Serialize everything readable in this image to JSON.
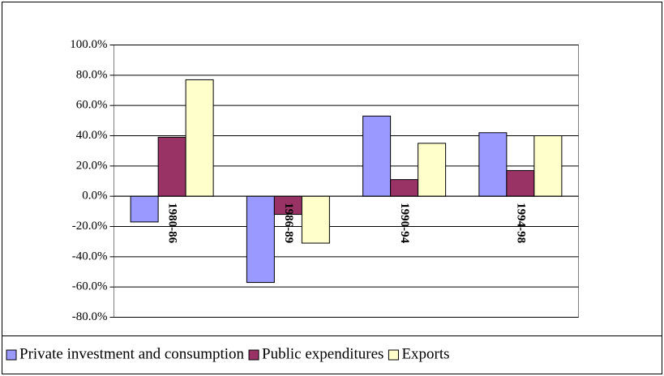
{
  "chart_data": {
    "type": "bar",
    "categories": [
      "1980-86",
      "1986-89",
      "1990-94",
      "1994-98"
    ],
    "series": [
      {
        "name": "Private investment and consumption",
        "color": "#9999ff",
        "values": [
          -17,
          -57,
          53,
          42
        ]
      },
      {
        "name": "Public expenditures",
        "color": "#993366",
        "values": [
          39,
          -12,
          11,
          17
        ]
      },
      {
        "name": "Exports",
        "color": "#ffffcc",
        "values": [
          77,
          -31,
          35,
          40
        ]
      }
    ],
    "ylim": [
      -80,
      100
    ],
    "yticks": [
      {
        "value": -80,
        "label": "-80.0%"
      },
      {
        "value": -60,
        "label": "-60.0%"
      },
      {
        "value": -40,
        "label": "-40.0%"
      },
      {
        "value": -20,
        "label": "-20.0%"
      },
      {
        "value": 0,
        "label": "0.0%"
      },
      {
        "value": 20,
        "label": "20.0%"
      },
      {
        "value": 40,
        "label": "40.0%"
      },
      {
        "value": 60,
        "label": "60.0%"
      },
      {
        "value": 80,
        "label": "80.0%"
      },
      {
        "value": 100,
        "label": "100.0%"
      }
    ],
    "grid": true,
    "legend": "bottom"
  }
}
